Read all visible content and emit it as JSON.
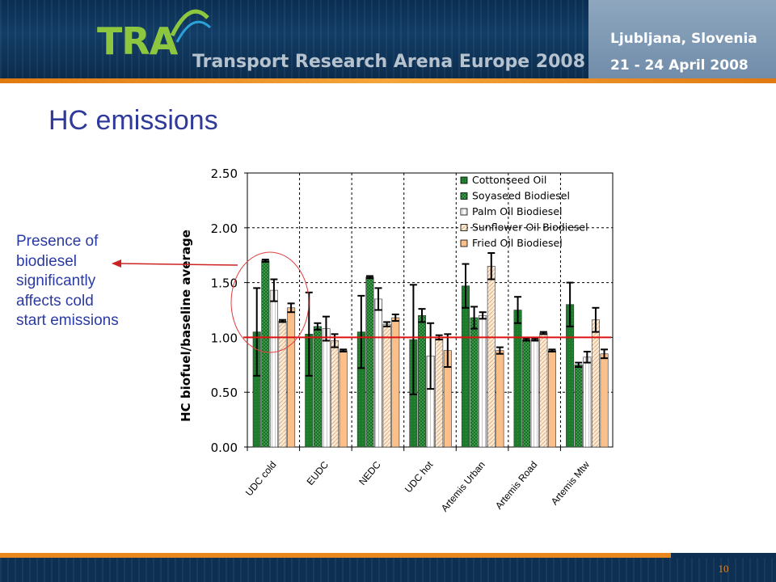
{
  "header": {
    "logo": "TRA",
    "subtitle": "Transport Research Arena Europe 2008",
    "location": "Ljubljana, Slovenia",
    "dates": "21 - 24 April 2008",
    "colors": {
      "banner": "#0b2a4a",
      "accent": "#e8871e",
      "logo": "#8dc63f"
    }
  },
  "slide": {
    "title": "HC emissions",
    "annotation": "Presence of biodiesel significantly affects cold start emissions",
    "page_number": "10"
  },
  "chart_data": {
    "type": "bar",
    "title": "",
    "xlabel": "",
    "ylabel": "HC biofuel/baseline average",
    "ylim": [
      0,
      2.5
    ],
    "yticks": [
      "0.00",
      "0.50",
      "1.00",
      "1.50",
      "2.00",
      "2.50"
    ],
    "grid": true,
    "legend_position": "top-right",
    "reference_line": 1.0,
    "categories": [
      "UDC cold",
      "EUDC",
      "NEDC",
      "UDC hot",
      "Artemis Urban",
      "Artemis Road",
      "Artemis Mtw"
    ],
    "series": [
      {
        "name": "Cottonseed Oil",
        "color": "#1e7b2e",
        "values": [
          1.05,
          1.03,
          1.05,
          0.98,
          1.47,
          1.25,
          1.3
        ],
        "errors": [
          0.4,
          0.38,
          0.33,
          0.5,
          0.2,
          0.12,
          0.2
        ]
      },
      {
        "name": "Soyaseed Biodiesel",
        "color": "#3a9a48",
        "values": [
          1.7,
          1.1,
          1.55,
          1.2,
          1.18,
          0.98,
          0.75
        ],
        "errors": [
          0.01,
          0.03,
          0.01,
          0.06,
          0.1,
          0.01,
          0.02
        ]
      },
      {
        "name": "Palm Oil Biodiesel",
        "color": "#f0f0f0",
        "values": [
          1.43,
          1.08,
          1.35,
          0.83,
          1.2,
          0.98,
          0.82
        ],
        "errors": [
          0.1,
          0.11,
          0.1,
          0.3,
          0.03,
          0.01,
          0.05
        ]
      },
      {
        "name": "Sunflower Oil Biodiesel",
        "color": "#fce4c8",
        "values": [
          1.15,
          0.97,
          1.12,
          1.0,
          1.65,
          1.04,
          1.16
        ],
        "errors": [
          0.01,
          0.06,
          0.02,
          0.02,
          0.12,
          0.01,
          0.11
        ]
      },
      {
        "name": "Fried Oil Biodiesel",
        "color": "#fbbf8a",
        "values": [
          1.27,
          0.88,
          1.18,
          0.88,
          0.88,
          0.88,
          0.85
        ],
        "errors": [
          0.04,
          0.01,
          0.03,
          0.15,
          0.03,
          0.01,
          0.04
        ]
      }
    ]
  }
}
